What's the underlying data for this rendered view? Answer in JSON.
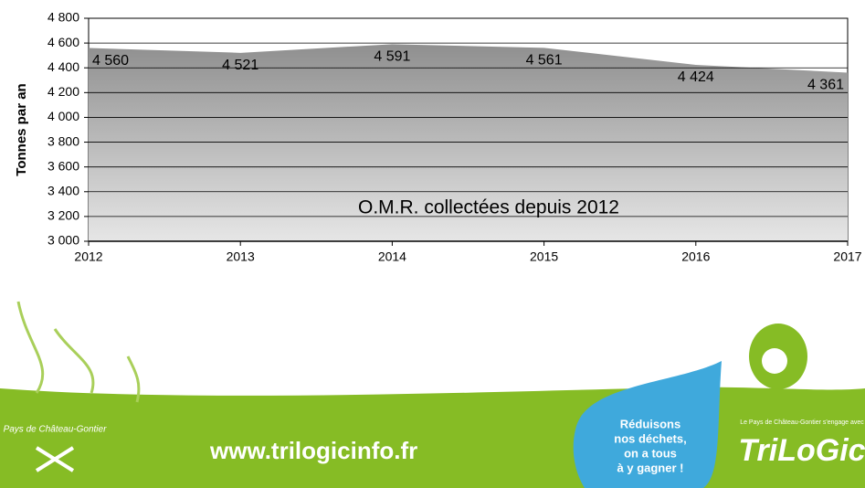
{
  "chart_data": {
    "type": "area",
    "annotation": "O.M.R. collectées depuis 2012",
    "y_label": "Tonnes par an",
    "x": [
      2012,
      2013,
      2014,
      2015,
      2016,
      2017
    ],
    "values": [
      4560,
      4521,
      4591,
      4561,
      4424,
      4361
    ],
    "value_labels": [
      "4 560",
      "4 521",
      "4 591",
      "4 561",
      "4 424",
      "4 361"
    ],
    "color": "#8c8c8c",
    "xlim": [
      2012,
      2017
    ],
    "xticks": [
      2012,
      2013,
      2014,
      2015,
      2016,
      2017
    ],
    "ylim": [
      3000,
      4800
    ],
    "yticks": [
      {
        "value": 3000,
        "label": "3 000"
      },
      {
        "value": 3200,
        "label": "3 200"
      },
      {
        "value": 3400,
        "label": "3 400"
      },
      {
        "value": 3600,
        "label": "3 600"
      },
      {
        "value": 3800,
        "label": "3 800"
      },
      {
        "value": 4000,
        "label": "4 000"
      },
      {
        "value": 4200,
        "label": "4 200"
      },
      {
        "value": 4400,
        "label": "4 400"
      },
      {
        "value": 4600,
        "label": "4 600"
      },
      {
        "value": 4800,
        "label": "4 800"
      }
    ],
    "grid": true
  },
  "footer": {
    "url": "www.trilogicinfo.fr",
    "slogan": [
      "Réduisons",
      "nos déchets,",
      "on a tous",
      "à y gagner !"
    ],
    "brand": "TriLoGic",
    "tagline": "Le Pays de Château-Gontier s'engage avec",
    "logo": "Pays de Château-Gontier"
  }
}
